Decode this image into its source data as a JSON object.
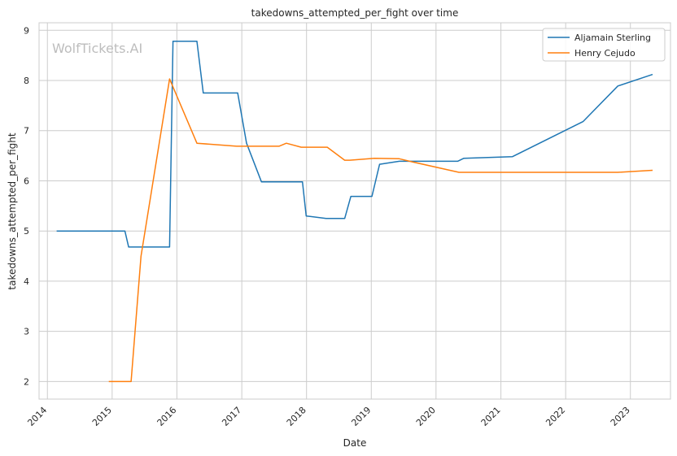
{
  "watermark": "WolfTickets.AI",
  "chart_data": {
    "type": "line",
    "title": "takedowns_attempted_per_fight over time",
    "xlabel": "Date",
    "ylabel": "takedowns_attempted_per_fight",
    "x_ticks": [
      "2014",
      "2015",
      "2016",
      "2017",
      "2018",
      "2019",
      "2020",
      "2021",
      "2022",
      "2023"
    ],
    "y_ticks": [
      2,
      3,
      4,
      5,
      6,
      7,
      8,
      9
    ],
    "xlim": [
      "2013-11-15",
      "2023-08-15"
    ],
    "ylim": [
      1.65,
      9.15
    ],
    "grid": true,
    "legend_position": "top-right",
    "series": [
      {
        "name": "Aljamain Sterling",
        "color": "#1f77b4",
        "points": [
          [
            "2014-02-22",
            5.0
          ],
          [
            "2015-03-14",
            5.0
          ],
          [
            "2015-04-04",
            4.68
          ],
          [
            "2015-11-21",
            4.68
          ],
          [
            "2015-12-10",
            8.78
          ],
          [
            "2016-04-23",
            8.78
          ],
          [
            "2016-05-29",
            7.75
          ],
          [
            "2016-12-09",
            7.75
          ],
          [
            "2017-01-28",
            6.75
          ],
          [
            "2017-04-22",
            5.98
          ],
          [
            "2017-12-09",
            5.98
          ],
          [
            "2017-12-30",
            5.3
          ],
          [
            "2018-04-21",
            5.25
          ],
          [
            "2018-08-04",
            5.25
          ],
          [
            "2018-09-08",
            5.69
          ],
          [
            "2019-01-05",
            5.69
          ],
          [
            "2019-02-17",
            6.33
          ],
          [
            "2019-06-08",
            6.39
          ],
          [
            "2020-05-02",
            6.39
          ],
          [
            "2020-06-06",
            6.45
          ],
          [
            "2021-03-06",
            6.48
          ],
          [
            "2022-04-09",
            7.18
          ],
          [
            "2022-10-22",
            7.89
          ],
          [
            "2023-05-06",
            8.12
          ]
        ]
      },
      {
        "name": "Henry Cejudo",
        "color": "#ff7f0e",
        "points": [
          [
            "2014-12-13",
            2.0
          ],
          [
            "2015-04-18",
            2.0
          ],
          [
            "2015-06-13",
            4.5
          ],
          [
            "2015-11-21",
            8.03
          ],
          [
            "2016-04-23",
            6.75
          ],
          [
            "2016-12-03",
            6.69
          ],
          [
            "2017-07-30",
            6.69
          ],
          [
            "2017-09-09",
            6.75
          ],
          [
            "2017-12-02",
            6.67
          ],
          [
            "2018-04-28",
            6.67
          ],
          [
            "2018-08-04",
            6.41
          ],
          [
            "2018-09-01",
            6.41
          ],
          [
            "2019-01-19",
            6.45
          ],
          [
            "2019-06-08",
            6.44
          ],
          [
            "2019-08-17",
            6.38
          ],
          [
            "2020-05-09",
            6.17
          ],
          [
            "2022-10-22",
            6.17
          ],
          [
            "2023-05-06",
            6.21
          ]
        ]
      }
    ]
  }
}
